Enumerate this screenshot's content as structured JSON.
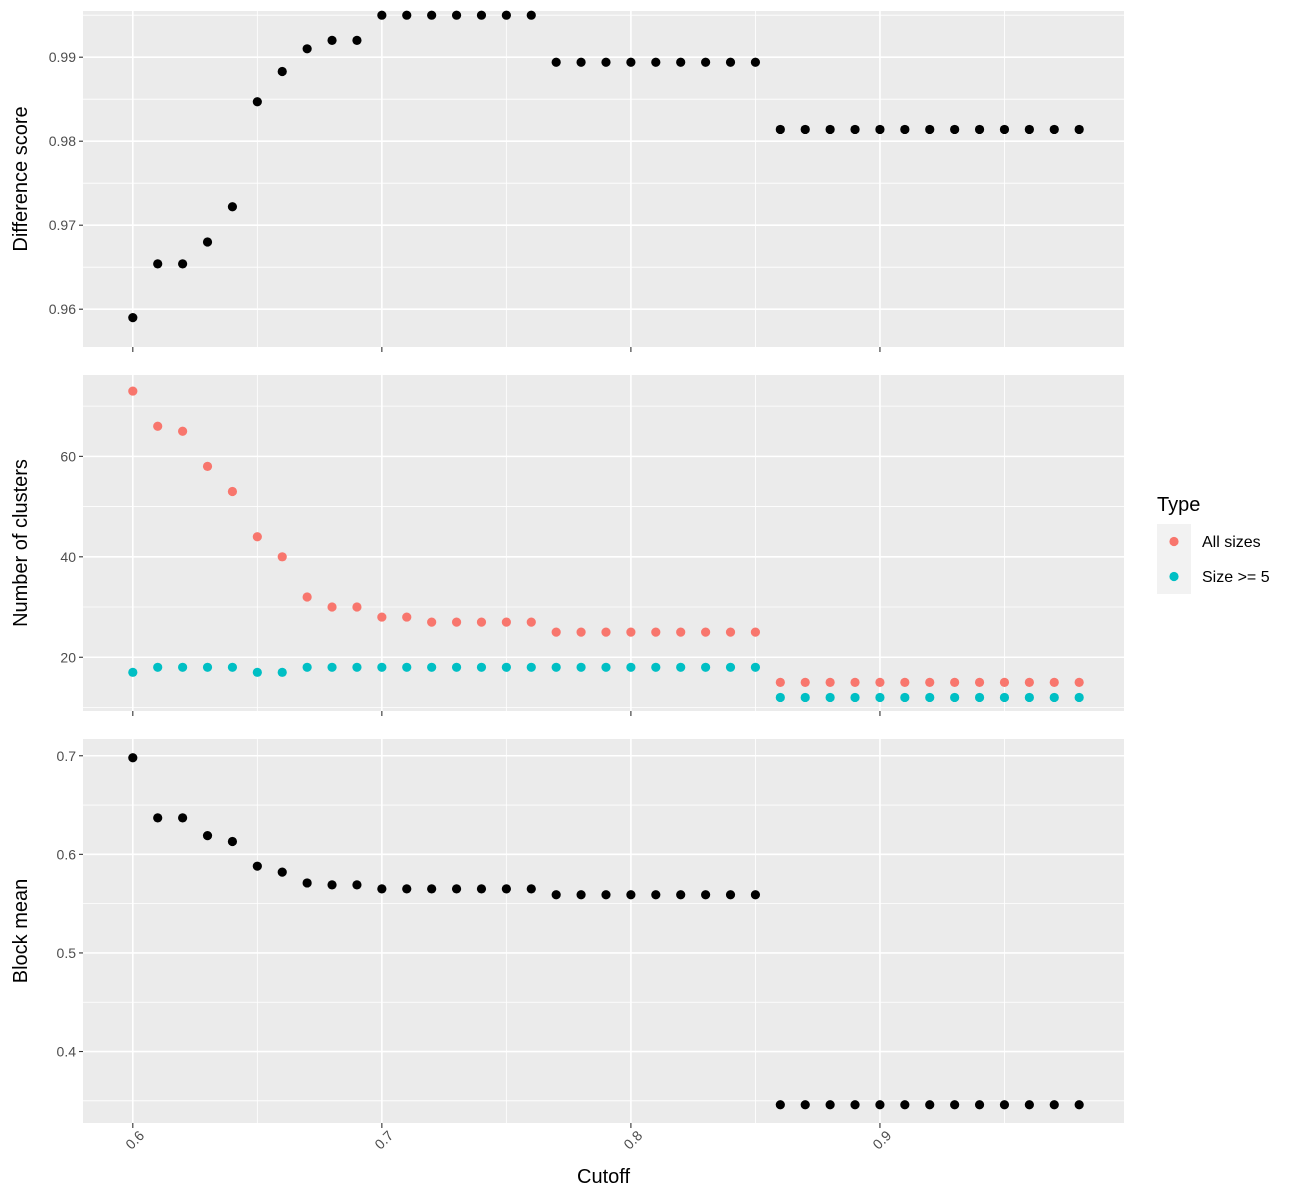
{
  "chart_data": [
    {
      "type": "scatter",
      "xlabel": "Cutoff",
      "ylabel": "Difference score",
      "xlim": [
        0.58,
        0.998
      ],
      "ylim": [
        0.9555,
        0.9955
      ],
      "xticks": [
        0.6,
        0.7,
        0.8,
        0.9
      ],
      "xtick_labels": [
        "0.6",
        "0.7",
        "0.8",
        "0.9"
      ],
      "yticks": [
        0.96,
        0.97,
        0.98,
        0.99
      ],
      "ytick_labels": [
        "0.96",
        "0.97",
        "0.98",
        "0.99"
      ],
      "grid": true,
      "series": [
        {
          "color": "#000000",
          "x": [
            0.6,
            0.61,
            0.62,
            0.63,
            0.64,
            0.65,
            0.66,
            0.67,
            0.68,
            0.69,
            0.7,
            0.71,
            0.72,
            0.73,
            0.74,
            0.75,
            0.76,
            0.77,
            0.78,
            0.79,
            0.8,
            0.81,
            0.82,
            0.83,
            0.84,
            0.85,
            0.86,
            0.87,
            0.88,
            0.89,
            0.9,
            0.91,
            0.92,
            0.93,
            0.94,
            0.95,
            0.96,
            0.97,
            0.98
          ],
          "y": [
            0.959,
            0.9654,
            0.9654,
            0.968,
            0.9722,
            0.9847,
            0.9883,
            0.991,
            0.992,
            0.992,
            0.995,
            0.995,
            0.995,
            0.995,
            0.995,
            0.995,
            0.995,
            0.9894,
            0.9894,
            0.9894,
            0.9894,
            0.9894,
            0.9894,
            0.9894,
            0.9894,
            0.9894,
            0.9814,
            0.9814,
            0.9814,
            0.9814,
            0.9814,
            0.9814,
            0.9814,
            0.9814,
            0.9814,
            0.9814,
            0.9814,
            0.9814,
            0.9814
          ]
        }
      ]
    },
    {
      "type": "scatter",
      "xlabel": "Cutoff",
      "ylabel": "Number of clusters",
      "xlim": [
        0.58,
        0.998
      ],
      "ylim": [
        9.3,
        76.2
      ],
      "xticks": [
        0.6,
        0.7,
        0.8,
        0.9
      ],
      "xtick_labels": [
        "0.6",
        "0.7",
        "0.8",
        "0.9"
      ],
      "yticks": [
        20,
        40,
        60
      ],
      "ytick_labels": [
        "20",
        "40",
        "60"
      ],
      "grid": true,
      "legend": {
        "title": "Type",
        "placement": "right",
        "entries": [
          {
            "label": "All sizes",
            "color": "#F8766D"
          },
          {
            "label": "Size >= 5",
            "color": "#00BFC4"
          }
        ]
      },
      "series": [
        {
          "name": "All sizes",
          "color": "#F8766D",
          "x": [
            0.6,
            0.61,
            0.62,
            0.63,
            0.64,
            0.65,
            0.66,
            0.67,
            0.68,
            0.69,
            0.7,
            0.71,
            0.72,
            0.73,
            0.74,
            0.75,
            0.76,
            0.77,
            0.78,
            0.79,
            0.8,
            0.81,
            0.82,
            0.83,
            0.84,
            0.85,
            0.86,
            0.87,
            0.88,
            0.89,
            0.9,
            0.91,
            0.92,
            0.93,
            0.94,
            0.95,
            0.96,
            0.97,
            0.98
          ],
          "y": [
            73,
            66,
            65,
            58,
            53,
            44,
            40,
            32,
            30,
            30,
            28,
            28,
            27,
            27,
            27,
            27,
            27,
            25,
            25,
            25,
            25,
            25,
            25,
            25,
            25,
            25,
            15,
            15,
            15,
            15,
            15,
            15,
            15,
            15,
            15,
            15,
            15,
            15,
            15
          ]
        },
        {
          "name": "Size >= 5",
          "color": "#00BFC4",
          "x": [
            0.6,
            0.61,
            0.62,
            0.63,
            0.64,
            0.65,
            0.66,
            0.67,
            0.68,
            0.69,
            0.7,
            0.71,
            0.72,
            0.73,
            0.74,
            0.75,
            0.76,
            0.77,
            0.78,
            0.79,
            0.8,
            0.81,
            0.82,
            0.83,
            0.84,
            0.85,
            0.86,
            0.87,
            0.88,
            0.89,
            0.9,
            0.91,
            0.92,
            0.93,
            0.94,
            0.95,
            0.96,
            0.97,
            0.98
          ],
          "y": [
            17,
            18,
            18,
            18,
            18,
            17,
            17,
            18,
            18,
            18,
            18,
            18,
            18,
            18,
            18,
            18,
            18,
            18,
            18,
            18,
            18,
            18,
            18,
            18,
            18,
            18,
            12,
            12,
            12,
            12,
            12,
            12,
            12,
            12,
            12,
            12,
            12,
            12,
            12
          ]
        }
      ]
    },
    {
      "type": "scatter",
      "xlabel": "Cutoff",
      "ylabel": "Block mean",
      "xlim": [
        0.58,
        0.998
      ],
      "ylim": [
        0.3275,
        0.717
      ],
      "xticks": [
        0.6,
        0.7,
        0.8,
        0.9
      ],
      "xtick_labels": [
        "0.6",
        "0.7",
        "0.8",
        "0.9"
      ],
      "yticks": [
        0.4,
        0.5,
        0.6,
        0.7
      ],
      "ytick_labels": [
        "0.4",
        "0.5",
        "0.6",
        "0.7"
      ],
      "grid": true,
      "series": [
        {
          "color": "#000000",
          "x": [
            0.6,
            0.61,
            0.62,
            0.63,
            0.64,
            0.65,
            0.66,
            0.67,
            0.68,
            0.69,
            0.7,
            0.71,
            0.72,
            0.73,
            0.74,
            0.75,
            0.76,
            0.77,
            0.78,
            0.79,
            0.8,
            0.81,
            0.82,
            0.83,
            0.84,
            0.85,
            0.86,
            0.87,
            0.88,
            0.89,
            0.9,
            0.91,
            0.92,
            0.93,
            0.94,
            0.95,
            0.96,
            0.97,
            0.98
          ],
          "y": [
            0.698,
            0.637,
            0.637,
            0.619,
            0.613,
            0.588,
            0.582,
            0.571,
            0.569,
            0.569,
            0.565,
            0.565,
            0.565,
            0.565,
            0.565,
            0.565,
            0.565,
            0.559,
            0.559,
            0.559,
            0.559,
            0.559,
            0.559,
            0.559,
            0.559,
            0.559,
            0.346,
            0.346,
            0.346,
            0.346,
            0.346,
            0.346,
            0.346,
            0.346,
            0.346,
            0.346,
            0.346,
            0.346,
            0.346
          ]
        }
      ]
    }
  ]
}
